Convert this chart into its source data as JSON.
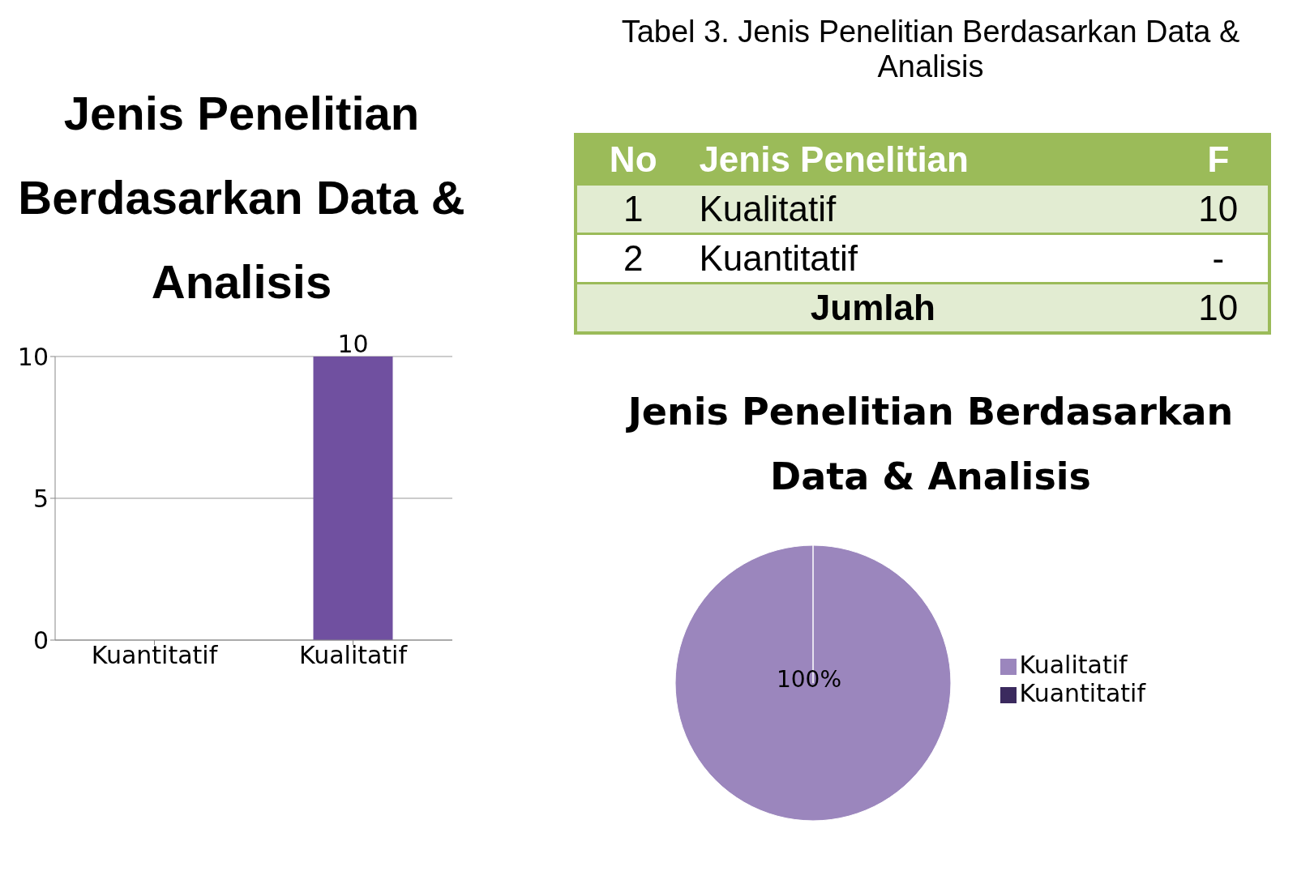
{
  "chart_data": [
    {
      "type": "bar",
      "title": "Jenis Penelitian Berdasarkan Data & Analisis",
      "categories": [
        "Kuantitatif",
        "Kualitatif"
      ],
      "values": [
        0,
        10
      ],
      "colors": [
        "#2e1f4a",
        "#7050a0"
      ],
      "value_labels": [
        null,
        "10"
      ],
      "ylim": [
        0,
        10
      ],
      "yticks": [
        0,
        5,
        10
      ],
      "grid": "y"
    },
    {
      "type": "other",
      "title": "Tabel 3. Jenis Penelitian Berdasarkan Data & Analisis",
      "annotations": [
        "No",
        "Jenis Penelitian",
        "F",
        "1",
        "Kualitatif",
        "10",
        "2",
        "Kuantitatif",
        "-",
        "Jumlah",
        "10"
      ]
    },
    {
      "type": "pie",
      "title": "Jenis Penelitian Berdasarkan Data & Analisis",
      "categories": [
        "Kuantitatif",
        "Kualitatif"
      ],
      "values": [
        0,
        100
      ],
      "colors": [
        "#3b2a5e",
        "#9b86bd"
      ],
      "value_labels": [
        null,
        "100%"
      ],
      "legend": "right"
    }
  ]
}
